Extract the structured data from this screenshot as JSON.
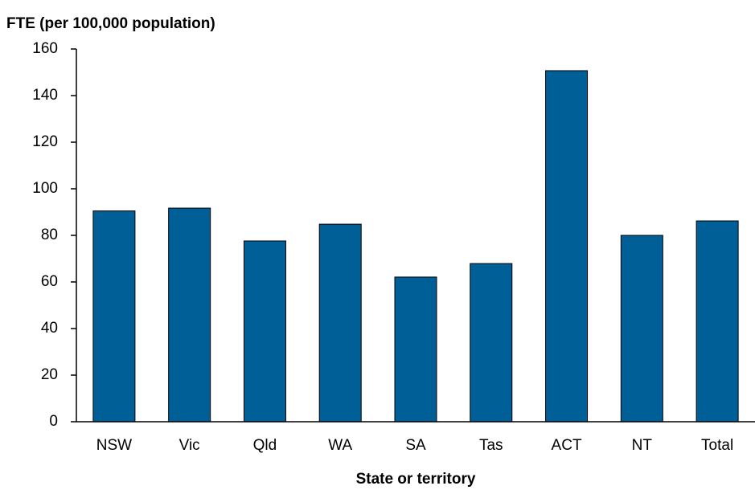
{
  "chart_data": {
    "type": "bar",
    "y_axis_label": "FTE (per 100,000 population)",
    "x_axis_label": "State or territory",
    "categories": [
      "NSW",
      "Vic",
      "Qld",
      "WA",
      "SA",
      "Tas",
      "ACT",
      "NT",
      "Total"
    ],
    "values": [
      90.5,
      91.7,
      77.6,
      84.8,
      62.1,
      67.9,
      150.7,
      80,
      86.2
    ],
    "color": "#005f96",
    "ylim": [
      0,
      160
    ],
    "yticks": [
      0,
      20,
      40,
      60,
      80,
      100,
      120,
      140,
      160
    ],
    "grid": false
  }
}
